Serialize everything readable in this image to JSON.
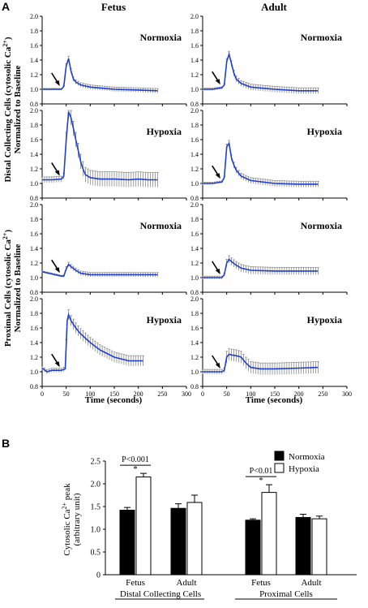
{
  "figure": {
    "panel_a_label": "A",
    "panel_b_label": "B",
    "col_fetus": "Fetus",
    "col_adult": "Adult",
    "ylabel_top": "Distal Collecting Cells (cytosolic Ca²⁺) Normalized to Baseline",
    "ylabel_top_line1": "Distal Collecting Cells (cytosolic Ca",
    "ylabel_top_line2": "Normalized to Baseline",
    "ylabel_bottom_line1": "Proximal Cells (cytosolic Ca",
    "ylabel_bottom_line2": "Normalized to Baseline",
    "xlabel_a": "Time (seconds)",
    "cond_normoxia": "Normoxia",
    "cond_hypoxia": "Hypoxia"
  },
  "colors": {
    "trace": "#1f3fd0",
    "errorbar": "#888888",
    "bar_normoxia": "#000000",
    "bar_hypoxia": "#ffffff"
  },
  "chart_data": [
    {
      "type": "line",
      "id": "distal-fetus-normoxia",
      "row": 0,
      "col": 0,
      "label": "Normoxia",
      "xlim": [
        0,
        300
      ],
      "ylim": [
        0.8,
        2.0
      ],
      "xticks": [
        0,
        50,
        100,
        150,
        200,
        250,
        300
      ],
      "yticks": [
        "0.8",
        "1.0",
        "1.2",
        "1.4",
        "1.6",
        "1.8",
        "2.0"
      ],
      "arrow_x": 40,
      "trace": [
        [
          0,
          1.0
        ],
        [
          20,
          1.0
        ],
        [
          40,
          1.0
        ],
        [
          45,
          1.04
        ],
        [
          50,
          1.32
        ],
        [
          55,
          1.42
        ],
        [
          60,
          1.25
        ],
        [
          65,
          1.14
        ],
        [
          70,
          1.1
        ],
        [
          80,
          1.06
        ],
        [
          100,
          1.03
        ],
        [
          150,
          1.0
        ],
        [
          200,
          0.99
        ],
        [
          240,
          0.98
        ]
      ],
      "err": 0.03
    },
    {
      "type": "line",
      "id": "distal-adult-normoxia",
      "row": 0,
      "col": 1,
      "label": "Normoxia",
      "xlim": [
        0,
        300
      ],
      "ylim": [
        0.8,
        2.0
      ],
      "xticks": [
        0,
        50,
        100,
        150,
        200,
        250,
        300
      ],
      "yticks": [
        "0.8",
        "1.0",
        "1.2",
        "1.4",
        "1.6",
        "1.8",
        "2.0"
      ],
      "arrow_x": 40,
      "trace": [
        [
          0,
          1.0
        ],
        [
          20,
          1.0
        ],
        [
          40,
          1.02
        ],
        [
          45,
          1.06
        ],
        [
          50,
          1.38
        ],
        [
          55,
          1.48
        ],
        [
          60,
          1.35
        ],
        [
          65,
          1.22
        ],
        [
          70,
          1.14
        ],
        [
          80,
          1.08
        ],
        [
          100,
          1.03
        ],
        [
          150,
          1.0
        ],
        [
          200,
          0.98
        ],
        [
          240,
          0.98
        ]
      ],
      "err": 0.04
    },
    {
      "type": "line",
      "id": "distal-fetus-hypoxia",
      "row": 1,
      "col": 0,
      "label": "Hypoxia",
      "xlim": [
        0,
        300
      ],
      "ylim": [
        0.8,
        2.0
      ],
      "xticks": [
        0,
        50,
        100,
        150,
        200,
        250,
        300
      ],
      "yticks": [
        "0.8",
        "1.0",
        "1.2",
        "1.4",
        "1.6",
        "1.8",
        "2.0"
      ],
      "arrow_x": 40,
      "trace": [
        [
          0,
          1.05
        ],
        [
          20,
          1.05
        ],
        [
          40,
          1.06
        ],
        [
          45,
          1.1
        ],
        [
          50,
          1.6
        ],
        [
          55,
          1.98
        ],
        [
          60,
          1.9
        ],
        [
          65,
          1.75
        ],
        [
          70,
          1.6
        ],
        [
          75,
          1.45
        ],
        [
          80,
          1.3
        ],
        [
          85,
          1.2
        ],
        [
          90,
          1.12
        ],
        [
          100,
          1.08
        ],
        [
          120,
          1.06
        ],
        [
          150,
          1.06
        ],
        [
          180,
          1.05
        ],
        [
          200,
          1.06
        ],
        [
          220,
          1.05
        ],
        [
          240,
          1.05
        ]
      ],
      "err": 0.1
    },
    {
      "type": "line",
      "id": "distal-adult-hypoxia",
      "row": 1,
      "col": 1,
      "label": "Hypoxia",
      "xlim": [
        0,
        300
      ],
      "ylim": [
        0.8,
        2.0
      ],
      "xticks": [
        0,
        50,
        100,
        150,
        200,
        250,
        300
      ],
      "yticks": [
        "0.8",
        "1.0",
        "1.2",
        "1.4",
        "1.6",
        "1.8",
        "2.0"
      ],
      "arrow_x": 40,
      "trace": [
        [
          0,
          1.0
        ],
        [
          20,
          1.0
        ],
        [
          40,
          1.02
        ],
        [
          45,
          1.08
        ],
        [
          50,
          1.5
        ],
        [
          55,
          1.55
        ],
        [
          60,
          1.35
        ],
        [
          65,
          1.25
        ],
        [
          70,
          1.18
        ],
        [
          80,
          1.1
        ],
        [
          100,
          1.04
        ],
        [
          150,
          1.0
        ],
        [
          200,
          0.99
        ],
        [
          240,
          0.99
        ]
      ],
      "err": 0.04
    },
    {
      "type": "line",
      "id": "proximal-fetus-normoxia",
      "row": 2,
      "col": 0,
      "label": "Normoxia",
      "xlim": [
        0,
        300
      ],
      "ylim": [
        0.8,
        2.0
      ],
      "xticks": [
        0,
        50,
        100,
        150,
        200,
        250,
        300
      ],
      "yticks": [
        "0.8",
        "1.0",
        "1.2",
        "1.4",
        "1.6",
        "1.8",
        "2.0"
      ],
      "arrow_x": 40,
      "trace": [
        [
          0,
          1.08
        ],
        [
          20,
          1.05
        ],
        [
          40,
          1.02
        ],
        [
          45,
          1.02
        ],
        [
          50,
          1.12
        ],
        [
          55,
          1.18
        ],
        [
          60,
          1.15
        ],
        [
          70,
          1.1
        ],
        [
          80,
          1.06
        ],
        [
          100,
          1.04
        ],
        [
          150,
          1.04
        ],
        [
          200,
          1.04
        ],
        [
          240,
          1.04
        ]
      ],
      "err": 0.03
    },
    {
      "type": "line",
      "id": "proximal-adult-normoxia",
      "row": 2,
      "col": 1,
      "label": "Normoxia",
      "xlim": [
        0,
        300
      ],
      "ylim": [
        0.8,
        2.0
      ],
      "xticks": [
        0,
        50,
        100,
        150,
        200,
        250,
        300
      ],
      "yticks": [
        "0.8",
        "1.0",
        "1.2",
        "1.4",
        "1.6",
        "1.8",
        "2.0"
      ],
      "arrow_x": 40,
      "trace": [
        [
          0,
          1.0
        ],
        [
          20,
          1.0
        ],
        [
          40,
          1.0
        ],
        [
          45,
          1.04
        ],
        [
          50,
          1.2
        ],
        [
          55,
          1.25
        ],
        [
          60,
          1.22
        ],
        [
          70,
          1.17
        ],
        [
          80,
          1.13
        ],
        [
          100,
          1.1
        ],
        [
          150,
          1.09
        ],
        [
          200,
          1.09
        ],
        [
          240,
          1.09
        ]
      ],
      "err": 0.05
    },
    {
      "type": "line",
      "id": "proximal-fetus-hypoxia",
      "row": 3,
      "col": 0,
      "label": "Hypoxia",
      "xlim": [
        0,
        300
      ],
      "ylim": [
        0.8,
        2.0
      ],
      "xticks": [
        0,
        50,
        100,
        150,
        200,
        250,
        300
      ],
      "yticks": [
        "0.8",
        "1.0",
        "1.2",
        "1.4",
        "1.6",
        "1.8",
        "2.0"
      ],
      "arrow_x": 40,
      "trace": [
        [
          0,
          1.05
        ],
        [
          10,
          1.0
        ],
        [
          20,
          1.02
        ],
        [
          40,
          1.02
        ],
        [
          48,
          1.04
        ],
        [
          52,
          1.7
        ],
        [
          55,
          1.78
        ],
        [
          60,
          1.7
        ],
        [
          70,
          1.6
        ],
        [
          80,
          1.52
        ],
        [
          100,
          1.4
        ],
        [
          120,
          1.3
        ],
        [
          150,
          1.2
        ],
        [
          180,
          1.15
        ],
        [
          210,
          1.15
        ]
      ],
      "err": 0.07
    },
    {
      "type": "line",
      "id": "proximal-adult-hypoxia",
      "row": 3,
      "col": 1,
      "label": "Hypoxia",
      "xlim": [
        0,
        300
      ],
      "ylim": [
        0.8,
        2.0
      ],
      "xticks": [
        0,
        50,
        100,
        150,
        200,
        250,
        300
      ],
      "yticks": [
        "0.8",
        "1.0",
        "1.2",
        "1.4",
        "1.6",
        "1.8",
        "2.0"
      ],
      "arrow_x": 40,
      "trace": [
        [
          0,
          1.0
        ],
        [
          20,
          1.0
        ],
        [
          40,
          1.0
        ],
        [
          45,
          1.02
        ],
        [
          50,
          1.2
        ],
        [
          55,
          1.24
        ],
        [
          60,
          1.23
        ],
        [
          70,
          1.22
        ],
        [
          80,
          1.2
        ],
        [
          90,
          1.12
        ],
        [
          100,
          1.06
        ],
        [
          120,
          1.04
        ],
        [
          150,
          1.04
        ],
        [
          200,
          1.05
        ],
        [
          240,
          1.06
        ]
      ],
      "err": 0.08
    },
    {
      "type": "bar",
      "id": "panel-b",
      "ylabel": "Cytosolic Ca²⁺ peak (arbitrary unit)",
      "ylabel_line1": "Cytosolic Ca",
      "ylabel_line2": "(arbitrary unit)",
      "ylim": [
        0,
        2.5
      ],
      "yticks": [
        "0",
        "0.5",
        "1.0",
        "1.5",
        "2.0",
        "2.5"
      ],
      "legend": [
        "Normoxia",
        "Hypoxia"
      ],
      "legend_position": "top-right",
      "groups": [
        {
          "name": "Fetus",
          "normoxia": 1.42,
          "normoxia_err": 0.06,
          "hypoxia": 2.15,
          "hypoxia_err": 0.08,
          "sig": "P<0.001"
        },
        {
          "name": "Adult",
          "normoxia": 1.46,
          "normoxia_err": 0.1,
          "hypoxia": 1.59,
          "hypoxia_err": 0.16,
          "sig": ""
        },
        {
          "name": "Fetus",
          "normoxia": 1.2,
          "normoxia_err": 0.03,
          "hypoxia": 1.81,
          "hypoxia_err": 0.17,
          "sig": "P<0.01"
        },
        {
          "name": "Adult",
          "normoxia": 1.26,
          "normoxia_err": 0.07,
          "hypoxia": 1.23,
          "hypoxia_err": 0.06,
          "sig": ""
        }
      ],
      "star": "*",
      "supergroups": [
        "Distal Collecting Cells",
        "Proximal Cells"
      ]
    }
  ]
}
